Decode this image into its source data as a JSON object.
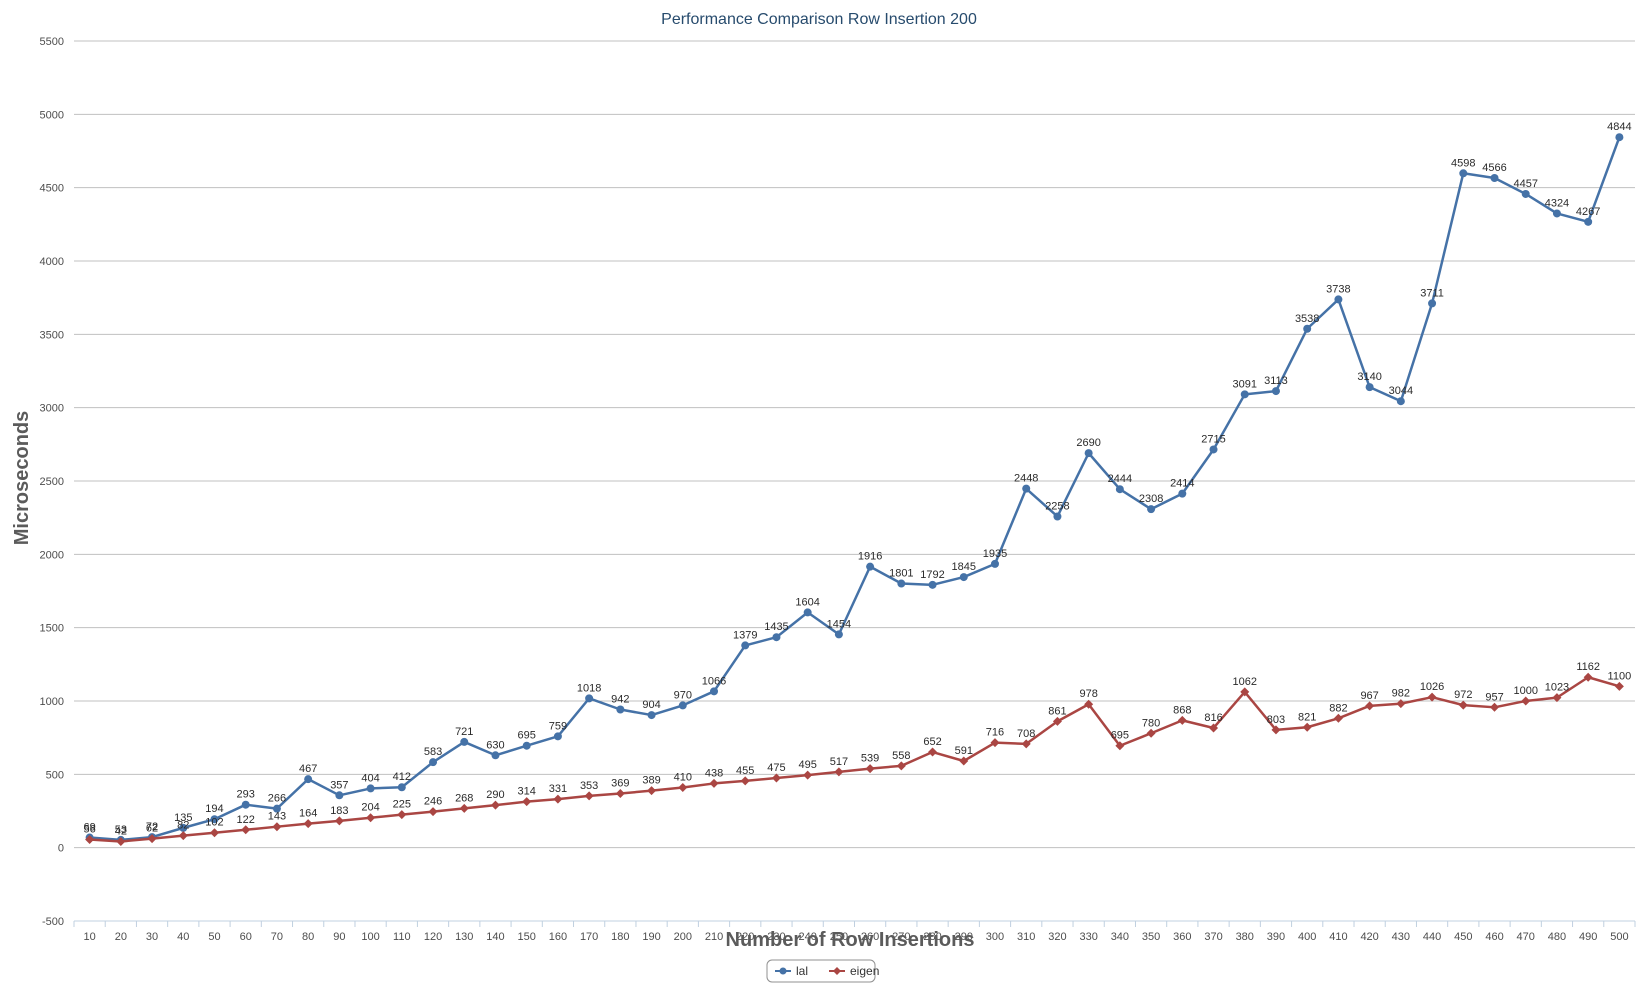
{
  "chart_data": {
    "type": "line",
    "title": "Performance Comparison Row Insertion 200",
    "xlabel": "Number of Row Insertions",
    "ylabel": "Microseconds",
    "ylim": [
      -500,
      5500
    ],
    "yticks": [
      -500,
      0,
      500,
      1000,
      1500,
      2000,
      2500,
      3000,
      3500,
      4000,
      4500,
      5000,
      5500
    ],
    "grid": true,
    "legend_position": "bottom-center",
    "categories": [
      10,
      20,
      30,
      40,
      50,
      60,
      70,
      80,
      90,
      100,
      110,
      120,
      130,
      140,
      150,
      160,
      170,
      180,
      190,
      200,
      210,
      220,
      230,
      240,
      250,
      260,
      270,
      280,
      290,
      300,
      310,
      320,
      330,
      340,
      350,
      360,
      370,
      380,
      390,
      400,
      410,
      420,
      430,
      440,
      450,
      460,
      470,
      480,
      490,
      500
    ],
    "series": [
      {
        "name": "lal",
        "color": "#4572a7",
        "marker": "circle",
        "values": [
          69,
          53,
          72,
          135,
          194,
          293,
          266,
          467,
          357,
          404,
          412,
          583,
          721,
          630,
          695,
          759,
          1018,
          942,
          904,
          970,
          1066,
          1379,
          1435,
          1604,
          1454,
          1916,
          1801,
          1792,
          1845,
          1935,
          2448,
          2258,
          2690,
          2444,
          2308,
          2414,
          2715,
          3091,
          3113,
          3538,
          3738,
          3140,
          3044,
          3711,
          4598,
          4566,
          4457,
          4324,
          4267,
          4844
        ],
        "labels": [
          "69",
          "53",
          "72",
          "135",
          "194",
          "293",
          "266",
          "467",
          "357",
          "404",
          "412",
          "583",
          "721",
          "630",
          "695",
          "759",
          "1018",
          "942",
          "904",
          "970",
          "1066",
          "1379",
          "1435",
          "1604",
          "1454",
          "1916",
          "1801",
          "1792",
          "1845",
          "1935",
          "2448",
          "2258",
          "2690",
          "2444",
          "2308",
          "2414",
          "2715",
          "3091",
          "3113",
          "3538",
          "3738",
          "3140",
          "3044",
          "3711",
          "4598",
          "4566",
          "4457",
          "4324",
          "4267",
          "4844"
        ]
      },
      {
        "name": "eigen",
        "color": "#aa4643",
        "marker": "diamond",
        "values": [
          56,
          42,
          62,
          82,
          102,
          122,
          143,
          164,
          183,
          204,
          225,
          246,
          268,
          290,
          314,
          331,
          353,
          369,
          389,
          410,
          438,
          455,
          475,
          495,
          517,
          539,
          558,
          652,
          591,
          716,
          708,
          861,
          978,
          695,
          780,
          868,
          816,
          1062,
          803,
          821,
          882,
          967,
          982,
          1026,
          972,
          957,
          1000,
          1023,
          1162,
          1100
        ],
        "labels": [
          "56",
          "42",
          "62",
          "82",
          "102",
          "122",
          "143",
          "164",
          "183",
          "204",
          "225",
          "246",
          "268",
          "290",
          "314",
          "331",
          "353",
          "369",
          "389",
          "410",
          "438",
          "455",
          "475",
          "495",
          "517",
          "539",
          "558",
          "652",
          "591",
          "716",
          "708",
          "861",
          "978",
          "695",
          "780",
          "868",
          "816",
          "1062",
          "803",
          "821",
          "882",
          "967",
          "982",
          "1026",
          "972",
          "957",
          "1000",
          "1023",
          "1162",
          "1100"
        ]
      }
    ]
  }
}
